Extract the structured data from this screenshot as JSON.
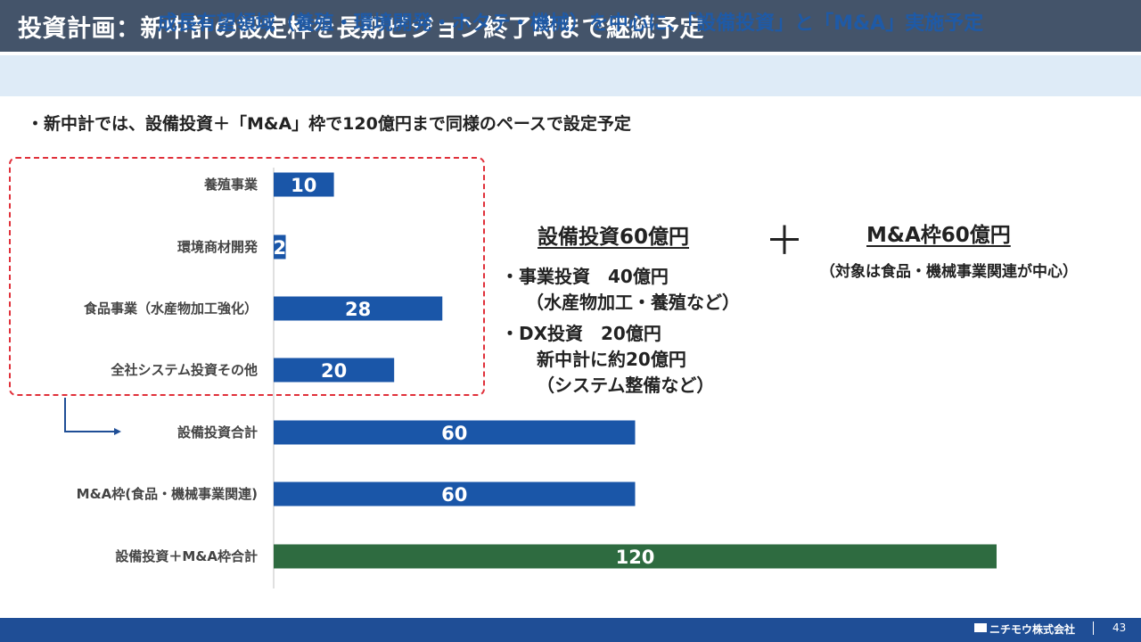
{
  "header": {
    "title": "投資計画：新中計の設定枠を長期ビジョン終了時まで継続予定",
    "subtitle": "成長有望領域（養殖・環境開発・ホタテ・機械）を中心に、「設備投資」と「M&A」実施予定"
  },
  "note": "・新中計では、設備投資＋「M&A」枠で120億円まで同様のペースで設定予定",
  "chart_data": {
    "type": "bar",
    "orientation": "horizontal",
    "categories": [
      "養殖事業",
      "環境商材開発",
      "食品事業（水産物加工強化）",
      "全社システム投資その他",
      "設備投資合計",
      "M&A枠(食品・機械事業関連)",
      "設備投資＋M&A枠合計"
    ],
    "values": [
      10,
      2,
      28,
      20,
      60,
      60,
      120
    ],
    "bar_colors": [
      "#1a56a8",
      "#1a56a8",
      "#1a56a8",
      "#1a56a8",
      "#1a56a8",
      "#1a56a8",
      "#2e6b40"
    ],
    "xlim": [
      0,
      120
    ],
    "title": "",
    "xlabel": "",
    "ylabel": "",
    "grid": false
  },
  "capex": {
    "title": "設備投資60億円",
    "lines": [
      "・事業投資　40億円",
      "（水産物加工・養殖など）",
      "・DX投資　20億円",
      "新中計に約20億円",
      "（システム整備など）"
    ]
  },
  "plus_sign": "＋",
  "mna": {
    "title": "M&A枠60億円",
    "note": "（対象は食品・機械事業関連が中心）"
  },
  "footer": {
    "company": "ニチモウ株式会社",
    "page": "43"
  },
  "colors": {
    "title_bg": "#44546a",
    "subtitle_bg": "#deebf7",
    "subtitle_text": "#1f5aa6",
    "bar_blue": "#1a56a8",
    "bar_green": "#2e6b40",
    "dashed_border": "#e0303a",
    "footer_bg": "#1f4e96"
  }
}
